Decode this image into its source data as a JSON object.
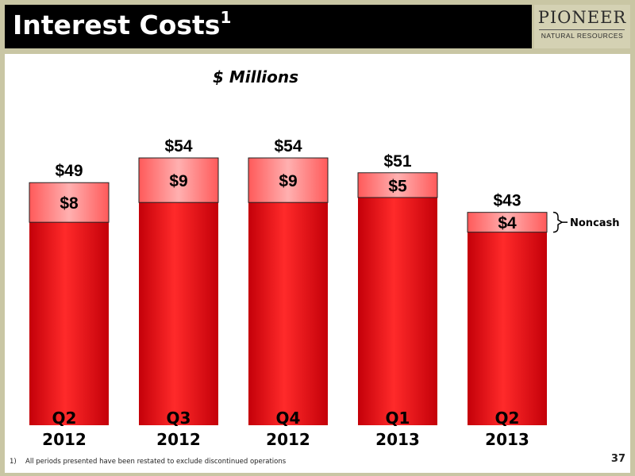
{
  "header": {
    "title": "Interest Costs",
    "title_superscript": "1"
  },
  "logo": {
    "name": "PIONEER",
    "subtitle": "NATURAL RESOURCES"
  },
  "chart_data": {
    "type": "bar",
    "stacked": true,
    "title": "$ Millions",
    "categories": [
      [
        "Q2",
        "2012"
      ],
      [
        "Q3",
        "2012"
      ],
      [
        "Q4",
        "2012"
      ],
      [
        "Q1",
        "2013"
      ],
      [
        "Q2",
        "2013"
      ]
    ],
    "totals": [
      49,
      54,
      54,
      51,
      43
    ],
    "total_labels": [
      "$49",
      "$54",
      "$54",
      "$51",
      "$43"
    ],
    "series": [
      {
        "values": [
          41,
          45,
          45,
          46,
          39
        ]
      },
      {
        "name": "Noncash",
        "values": [
          8,
          9,
          9,
          5,
          4
        ],
        "labels": [
          "$8",
          "$9",
          "$9",
          "$5",
          "$4"
        ]
      }
    ],
    "ylim": [
      0,
      60
    ],
    "grid": false,
    "legend": "right",
    "colors": {
      "cash": "#e8141a",
      "noncash": "#ff7a7a",
      "outline": "#222222"
    }
  },
  "footnote": {
    "number": "1)",
    "text": "All periods presented have been restated to exclude discontinued operations"
  },
  "page_number": "37"
}
